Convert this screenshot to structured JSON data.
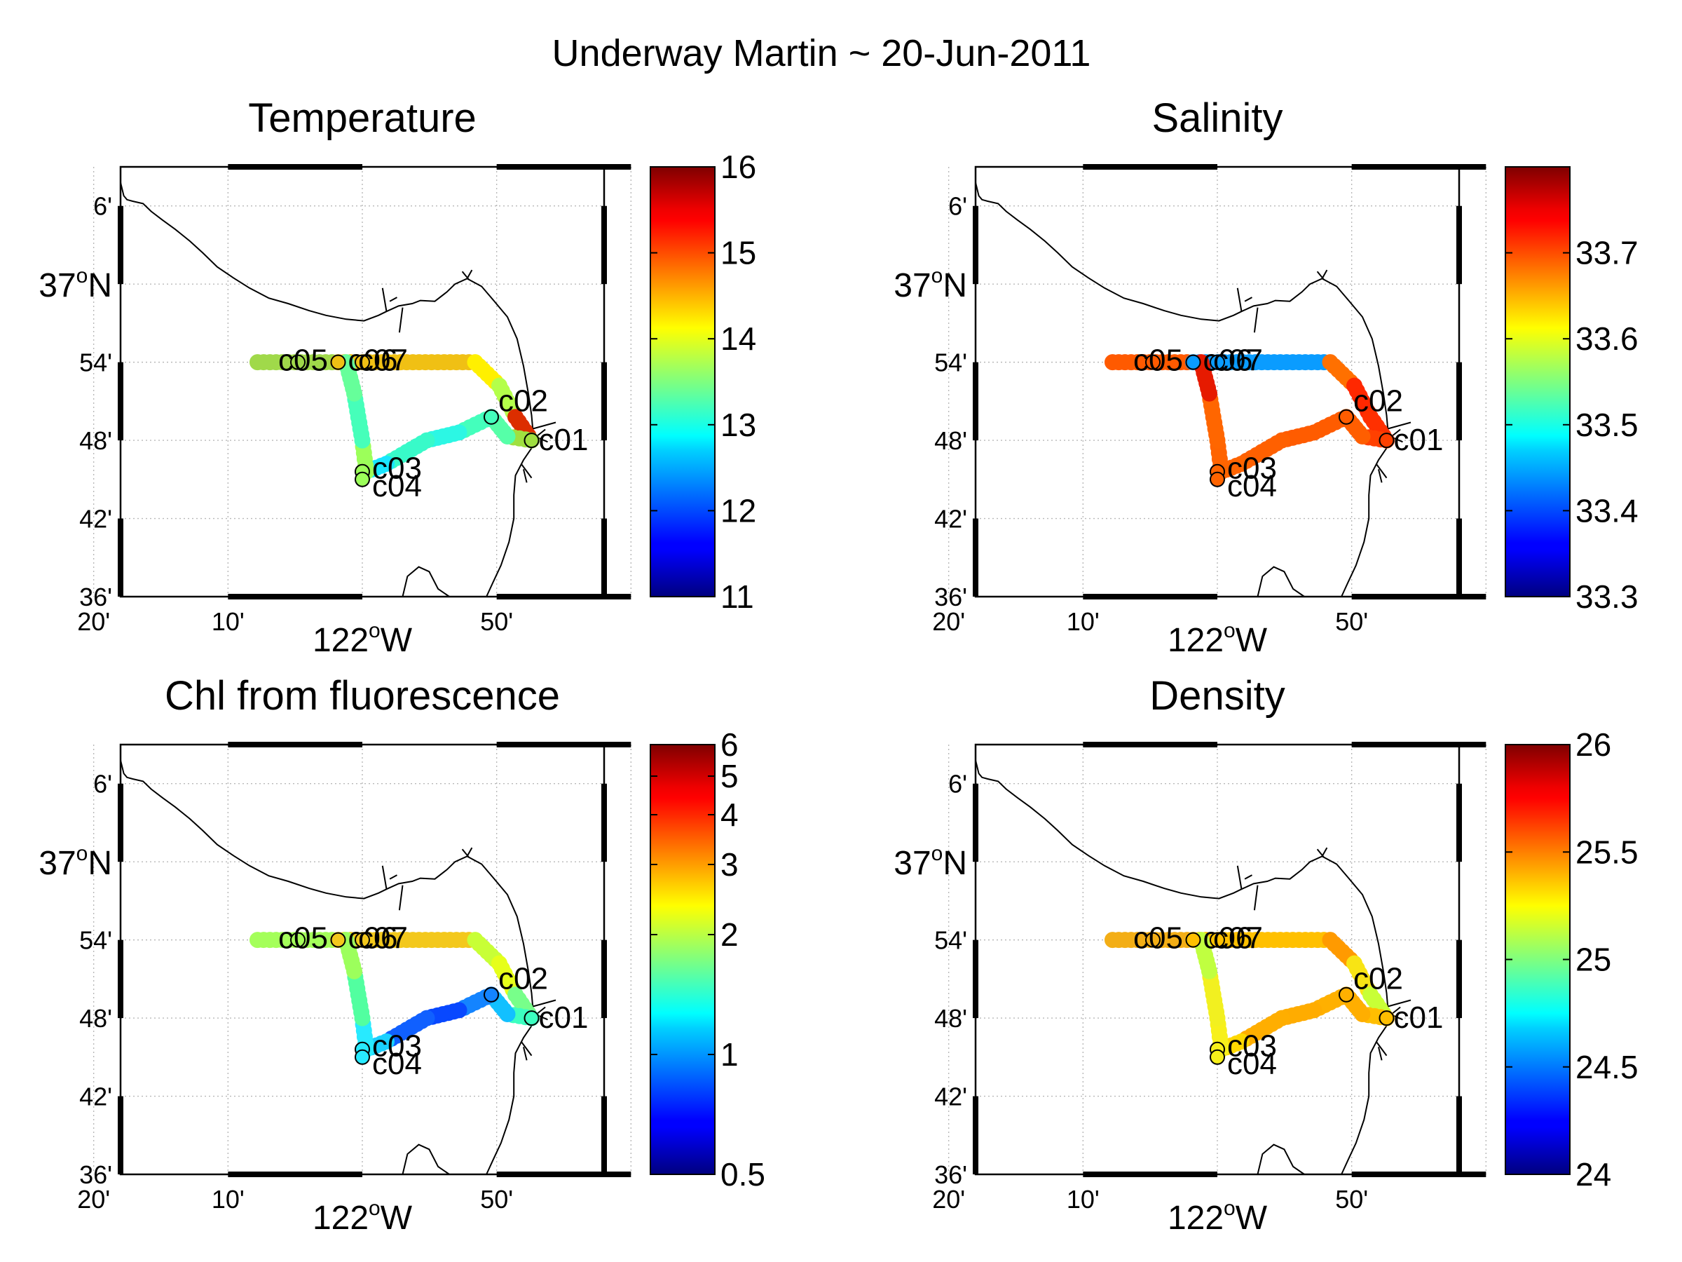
{
  "figure_title": "Underway Martin ~ 20-Jun-2011",
  "map": {
    "lon_ticks": [
      "20'",
      "10'",
      "50'"
    ],
    "lon_major_label": {
      "deg": "122",
      "sup": "o",
      "hemi": "W"
    },
    "lat_ticks": [
      "6'",
      "54'",
      "48'",
      "42'",
      "36'"
    ],
    "lat_major_label": {
      "deg": "37",
      "sup": "o",
      "hemi": "N"
    }
  },
  "stations": [
    {
      "id": "c01",
      "label": "c01",
      "lon": -121.79,
      "lat": 36.8
    },
    {
      "id": "c02",
      "label": "c02",
      "lon": -121.84,
      "lat": 36.83
    },
    {
      "id": "c03",
      "label": "c03",
      "lon": -122.0,
      "lat": 36.76
    },
    {
      "id": "c04",
      "label": "c04",
      "lon": -122.0,
      "lat": 36.75
    },
    {
      "id": "c05",
      "label": "c05",
      "lon": -122.08,
      "lat": 36.9
    },
    {
      "id": "c06",
      "label": "c06",
      "lon": -122.03,
      "lat": 36.9
    },
    {
      "id": "c07",
      "label": "c07",
      "lon": -122.0,
      "lat": 36.9
    }
  ],
  "panels": [
    {
      "id": "temperature",
      "title": "Temperature",
      "colorbar": {
        "min": 11,
        "max": 16,
        "scale": "linear",
        "tick_labels": [
          "16",
          "15",
          "14",
          "13",
          "12",
          "11"
        ]
      },
      "colors": [
        "#a0d94a",
        "#f0c014",
        "#fff000",
        "#b4ff4a",
        "#dc2e00",
        "#9fe040",
        "#56ffa8",
        "#44ffbc",
        "#2cf7e4",
        "#38fac9",
        "#18e6ff",
        "#9cff5a",
        "#46ffba",
        "#66ff9a",
        "#62ff9c"
      ]
    },
    {
      "id": "salinity",
      "title": "Salinity",
      "colorbar": {
        "min": 33.3,
        "max": 33.8,
        "scale": "linear",
        "tick_labels": [
          "33.7",
          "33.6",
          "33.5",
          "33.4",
          "33.3"
        ]
      },
      "colors": [
        "#ff5a00",
        "#0a9cff",
        "#ff7000",
        "#ff2800",
        "#ff3000",
        "#ff4000",
        "#ff5e00",
        "#ff5c00",
        "#ff5c00",
        "#ff6000",
        "#ff6400",
        "#ff6400",
        "#ff6600",
        "#e61a00",
        "#d80c00"
      ]
    },
    {
      "id": "chl",
      "title": "Chl from fluorescence",
      "colorbar": {
        "min": 0.5,
        "max": 6,
        "scale": "log",
        "tick_labels": [
          "6",
          "5",
          "4",
          "3",
          "2",
          "1",
          "0.5"
        ]
      },
      "colors": [
        "#a4ff5a",
        "#f3c81c",
        "#c8ff36",
        "#e6ff1a",
        "#78ff8a",
        "#3cffc0",
        "#12c0ff",
        "#1484ff",
        "#0848ff",
        "#1060ff",
        "#1ad0ff",
        "#28eaff",
        "#52ffa0",
        "#9cff5c",
        "#96ff5e"
      ]
    },
    {
      "id": "density",
      "title": "Density",
      "colorbar": {
        "min": 24,
        "max": 26,
        "scale": "linear",
        "tick_labels": [
          "26",
          "25.5",
          "25",
          "24.5",
          "24"
        ]
      },
      "colors": [
        "#f3ae16",
        "#ffc000",
        "#ff9a00",
        "#f8e414",
        "#c8ff36",
        "#ffbe00",
        "#ffae00",
        "#ffb000",
        "#ffac00",
        "#ffae00",
        "#ffd800",
        "#f7f01a",
        "#f2f020",
        "#c0ff40",
        "#a8ff56"
      ]
    }
  ]
}
